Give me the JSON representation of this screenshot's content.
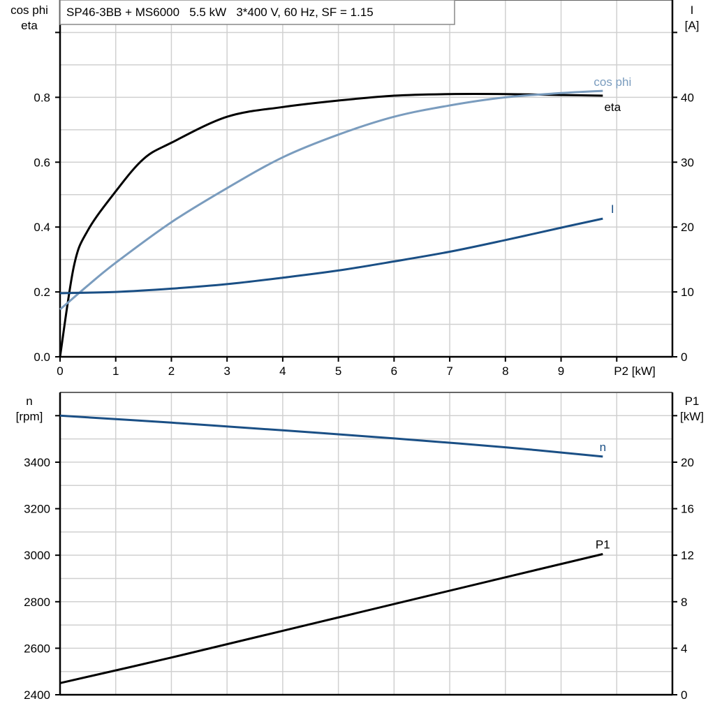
{
  "chart_data": [
    {
      "type": "line",
      "title": "SP46-3BB + MS6000   5.5 kW   3*400 V, 60 Hz, SF = 1.15",
      "xlabel": "P2 [kW]",
      "ylabel_left": [
        "cos phi",
        "eta"
      ],
      "ylabel_right": [
        "I",
        "[A]"
      ],
      "xlim": [
        0,
        11
      ],
      "ylim_left": [
        0,
        1.1
      ],
      "ylim_right": [
        0,
        55
      ],
      "x_ticks": [
        "0",
        "1",
        "2",
        "3",
        "4",
        "5",
        "6",
        "7",
        "8",
        "9"
      ],
      "y_ticks_left": [
        "0.0",
        "0.2",
        "0.4",
        "0.6",
        "0.8"
      ],
      "y_ticks_right": [
        "0",
        "10",
        "20",
        "30",
        "40"
      ],
      "grid": true,
      "series": [
        {
          "name": "eta",
          "axis": "left",
          "color": "#000000",
          "x": [
            0,
            0.25,
            0.5,
            1,
            1.5,
            2,
            3,
            4,
            5,
            6,
            7,
            8,
            9,
            9.75
          ],
          "y": [
            0,
            0.28,
            0.39,
            0.51,
            0.61,
            0.66,
            0.74,
            0.77,
            0.79,
            0.805,
            0.81,
            0.81,
            0.807,
            0.805
          ]
        },
        {
          "name": "cos phi",
          "axis": "left",
          "color": "#7A9CBE",
          "x": [
            0,
            0.5,
            1,
            2,
            3,
            4,
            5,
            6,
            7,
            8,
            9,
            9.75
          ],
          "y": [
            0.146,
            0.22,
            0.29,
            0.415,
            0.52,
            0.615,
            0.685,
            0.74,
            0.775,
            0.8,
            0.813,
            0.82
          ]
        },
        {
          "name": "I",
          "axis": "right",
          "color": "#1A4F85",
          "x": [
            0,
            1,
            2,
            3,
            4,
            5,
            6,
            7,
            8,
            9,
            9.75
          ],
          "y": [
            9.8,
            10,
            10.5,
            11.2,
            12.2,
            13.3,
            14.7,
            16.2,
            18,
            19.9,
            21.3
          ]
        }
      ]
    },
    {
      "type": "line",
      "ylabel_left": [
        "n",
        "[rpm]"
      ],
      "ylabel_right": [
        "P1",
        "[kW]"
      ],
      "xlim": [
        0,
        11
      ],
      "ylim_left": [
        2400,
        3700
      ],
      "ylim_right": [
        0,
        26
      ],
      "y_ticks_left": [
        "2400",
        "2600",
        "2800",
        "3000",
        "3200",
        "3400"
      ],
      "y_ticks_right": [
        "0",
        "4",
        "8",
        "12",
        "16",
        "20"
      ],
      "grid": true,
      "series": [
        {
          "name": "n",
          "axis": "left",
          "color": "#1A4F85",
          "x": [
            0,
            2,
            4,
            5,
            6,
            8,
            9.75
          ],
          "y": [
            3600,
            3570,
            3537,
            3520,
            3502,
            3464,
            3424
          ]
        },
        {
          "name": "P1",
          "axis": "right",
          "color": "#000000",
          "x": [
            0,
            2,
            4,
            6,
            8,
            9.75
          ],
          "y": [
            1.0,
            3.2,
            5.5,
            7.8,
            10.1,
            12.1
          ]
        }
      ]
    }
  ]
}
